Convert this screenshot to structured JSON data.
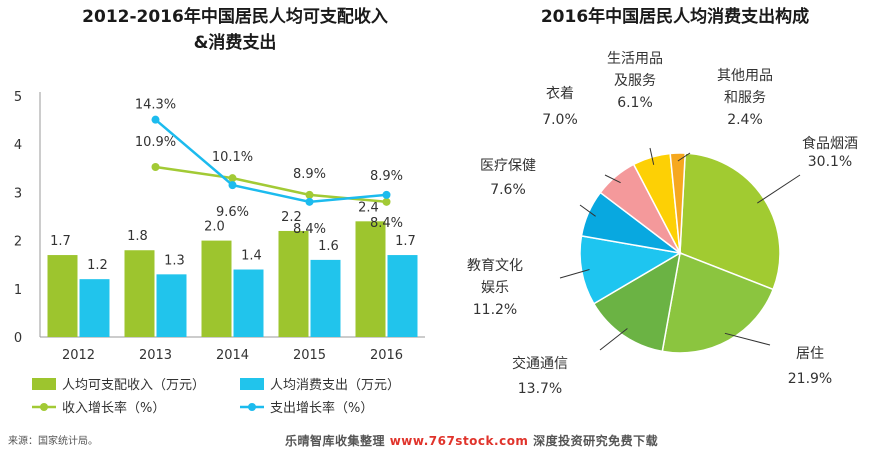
{
  "left_title_line1": "2012-2016年中国居民人均可支配收入",
  "left_title_line2": "&消费支出",
  "right_title": "2016年中国居民人均消费支出构成",
  "source": "来源：国家统计局。",
  "watermark_brand": "乐晴智库收集整理",
  "watermark_url": "www.767stock.com",
  "watermark_tail": "深度投资研究免费下载",
  "colors": {
    "green": "#9dc52e",
    "blue": "#21c4ec",
    "line_green": "#a2ca35",
    "line_blue": "#1cbbee"
  },
  "chart_data": [
    {
      "type": "bar",
      "categories": [
        "2012",
        "2013",
        "2014",
        "2015",
        "2016"
      ],
      "ylim": [
        0,
        5
      ],
      "yticks": [
        "0",
        "1",
        "2",
        "3",
        "4",
        "5"
      ],
      "series": [
        {
          "name": "人均可支配收入（万元）",
          "values": [
            1.7,
            1.8,
            2.0,
            2.2,
            2.4
          ],
          "labels": [
            "1.7",
            "1.8",
            "2.0",
            "2.2",
            "2.4"
          ]
        },
        {
          "name": "人均消费支出（万元）",
          "values": [
            1.2,
            1.3,
            1.4,
            1.6,
            1.7
          ],
          "labels": [
            "1.2",
            "1.3",
            "1.4",
            "1.6",
            "1.7"
          ]
        }
      ],
      "lines": [
        {
          "name": "收入增长率（%）",
          "values": [
            null,
            10.9,
            10.1,
            8.9,
            8.4
          ],
          "labels": [
            "",
            "10.9%",
            "10.1%",
            "8.9%",
            "8.4%"
          ]
        },
        {
          "name": "支出增长率（%）",
          "values": [
            null,
            14.3,
            9.6,
            8.4,
            8.9
          ],
          "labels": [
            "",
            "14.3%",
            "9.6%",
            "8.4%",
            "8.9%"
          ]
        }
      ],
      "legend": "bottom"
    },
    {
      "type": "pie",
      "slices": [
        {
          "label": "食品烟酒",
          "value": 30.1,
          "pct": "30.1%",
          "color": "#a1cb31"
        },
        {
          "label": "居住",
          "value": 21.9,
          "pct": "21.9%",
          "color": "#8bc53f"
        },
        {
          "label": "交通通信",
          "value": 13.7,
          "pct": "13.7%",
          "color": "#6bb344"
        },
        {
          "label": "教育文化娱乐",
          "label_lines": [
            "教育文化",
            "娱乐"
          ],
          "value": 11.2,
          "pct": "11.2%",
          "color": "#1ec5f0"
        },
        {
          "label": "医疗保健",
          "value": 7.6,
          "pct": "7.6%",
          "color": "#08a8e0"
        },
        {
          "label": "衣着",
          "value": 7.0,
          "pct": "7.0%",
          "color": "#f4999b"
        },
        {
          "label": "生活用品及服务",
          "label_lines": [
            "生活用品",
            "及服务"
          ],
          "value": 6.1,
          "pct": "6.1%",
          "color": "#fdd005"
        },
        {
          "label": "其他用品和服务",
          "label_lines": [
            "其他用品",
            "和服务"
          ],
          "value": 2.4,
          "pct": "2.4%",
          "color": "#f6a81f"
        }
      ]
    }
  ]
}
